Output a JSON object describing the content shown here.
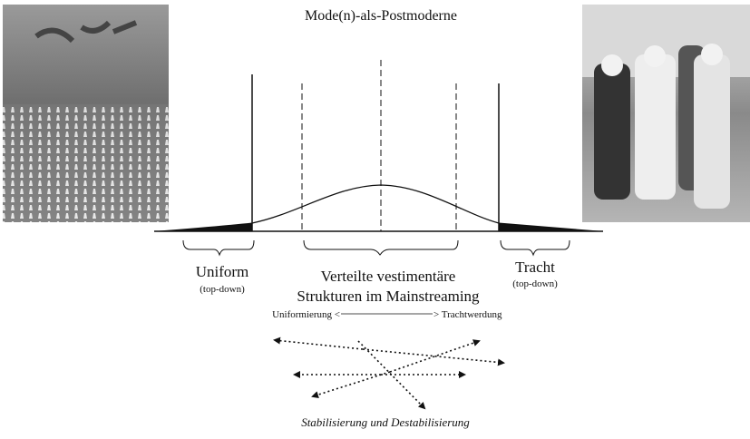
{
  "title": "Mode(n)-als-Postmoderne",
  "left_group": {
    "label": "Uniform",
    "sublabel": "(top-down)"
  },
  "center_group": {
    "lines": [
      "Verteilte vestimentäre",
      "Strukturen im Mainstreaming"
    ]
  },
  "right_group": {
    "label": "Tracht",
    "sublabel": "(top-down)"
  },
  "scale": {
    "left": "Uniformierung <",
    "right": "> Trachtwerdung"
  },
  "caption": "Stabilisierung und Destabilisierung"
}
